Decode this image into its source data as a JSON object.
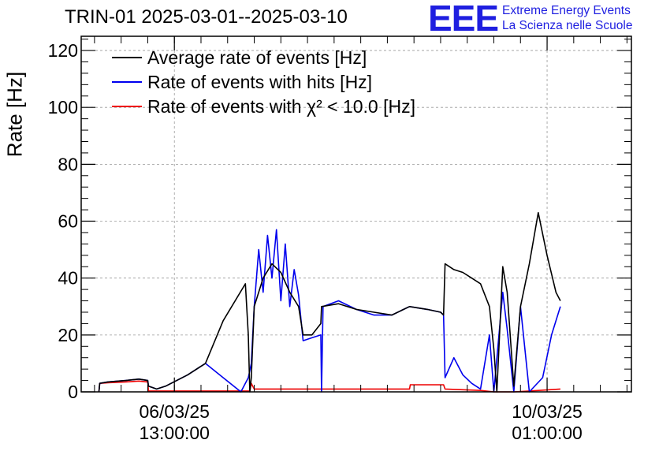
{
  "header": {
    "title": "TRIN-01 2025-03-01--2025-03-10",
    "logo_mark": "EEE",
    "logo_line1": "Extreme Energy Events",
    "logo_line2": "La Scienza nelle Scuole"
  },
  "colors": {
    "average": "#000000",
    "hits": "#0000ee",
    "chi2": "#ee0000",
    "grid": "#999999",
    "logo": "#1f1fe0"
  },
  "chart_data": {
    "type": "line",
    "title": "TRIN-01 2025-03-01--2025-03-10",
    "xlabel": "",
    "ylabel": "Rate [Hz]",
    "x_unit": "time",
    "xlim": [
      "2025-03-05 16:00",
      "2025-03-10 20:00"
    ],
    "ylim": [
      0,
      125
    ],
    "y_ticks": [
      0,
      20,
      40,
      60,
      80,
      100,
      120
    ],
    "x_ticks": [
      {
        "x": "2025-03-06 13:00",
        "label_date": "06/03/25",
        "label_time": "13:00:00"
      },
      {
        "x": "2025-03-10 01:00",
        "label_date": "10/03/25",
        "label_time": "01:00:00"
      }
    ],
    "grid": true,
    "legend": "top-left",
    "series": [
      {
        "name": "Average rate of events [Hz]",
        "color": "#000000",
        "points": [
          [
            "2025-03-05 20:00",
            0
          ],
          [
            "2025-03-05 20:10",
            3
          ],
          [
            "2025-03-05 22:00",
            3.5
          ],
          [
            "2025-03-06 02:00",
            4
          ],
          [
            "2025-03-06 05:00",
            4.5
          ],
          [
            "2025-03-06 07:00",
            4
          ],
          [
            "2025-03-06 07:10",
            2
          ],
          [
            "2025-03-06 09:00",
            1
          ],
          [
            "2025-03-06 11:00",
            2
          ],
          [
            "2025-03-06 16:00",
            6
          ],
          [
            "2025-03-06 20:00",
            10
          ],
          [
            "2025-03-07 00:00",
            25
          ],
          [
            "2025-03-07 05:00",
            38
          ],
          [
            "2025-03-07 05:40",
            20
          ],
          [
            "2025-03-07 06:00",
            0
          ],
          [
            "2025-03-07 06:20",
            5
          ],
          [
            "2025-03-07 07:00",
            30
          ],
          [
            "2025-03-07 09:00",
            40
          ],
          [
            "2025-03-07 11:00",
            45
          ],
          [
            "2025-03-07 13:00",
            42
          ],
          [
            "2025-03-07 15:00",
            35
          ],
          [
            "2025-03-07 17:00",
            30
          ],
          [
            "2025-03-07 18:00",
            20
          ],
          [
            "2025-03-07 20:00",
            20
          ],
          [
            "2025-03-07 22:00",
            24
          ],
          [
            "2025-03-07 22:10",
            30
          ],
          [
            "2025-03-08 02:00",
            31
          ],
          [
            "2025-03-08 06:00",
            29
          ],
          [
            "2025-03-08 10:00",
            28
          ],
          [
            "2025-03-08 14:00",
            27
          ],
          [
            "2025-03-08 18:00",
            30
          ],
          [
            "2025-03-08 22:00",
            29
          ],
          [
            "2025-03-09 01:00",
            28
          ],
          [
            "2025-03-09 01:40",
            27
          ],
          [
            "2025-03-09 02:00",
            45
          ],
          [
            "2025-03-09 04:00",
            43
          ],
          [
            "2025-03-09 06:00",
            42
          ],
          [
            "2025-03-09 08:00",
            40
          ],
          [
            "2025-03-09 10:00",
            38
          ],
          [
            "2025-03-09 12:00",
            30
          ],
          [
            "2025-03-09 13:00",
            15
          ],
          [
            "2025-03-09 13:40",
            0
          ],
          [
            "2025-03-09 15:00",
            44
          ],
          [
            "2025-03-09 16:00",
            35
          ],
          [
            "2025-03-09 17:30",
            2
          ],
          [
            "2025-03-09 19:00",
            30
          ],
          [
            "2025-03-09 21:00",
            45
          ],
          [
            "2025-03-09 23:00",
            63
          ],
          [
            "2025-03-10 01:00",
            48
          ],
          [
            "2025-03-10 03:00",
            35
          ],
          [
            "2025-03-10 04:00",
            32
          ]
        ]
      },
      {
        "name": "Rate of events with hits [Hz]",
        "color": "#0000ee",
        "points": [
          [
            "2025-03-05 20:00",
            0
          ],
          [
            "2025-03-05 20:10",
            3
          ],
          [
            "2025-03-05 22:00",
            3.5
          ],
          [
            "2025-03-06 02:00",
            4
          ],
          [
            "2025-03-06 05:00",
            4.5
          ],
          [
            "2025-03-06 07:00",
            4
          ],
          [
            "2025-03-06 07:10",
            2
          ],
          [
            "2025-03-06 09:00",
            1
          ],
          [
            "2025-03-06 11:00",
            2
          ],
          [
            "2025-03-06 16:00",
            6
          ],
          [
            "2025-03-06 20:00",
            10
          ],
          [
            "2025-03-07 00:00",
            5
          ],
          [
            "2025-03-07 04:00",
            0
          ],
          [
            "2025-03-07 05:40",
            5
          ],
          [
            "2025-03-07 06:20",
            10
          ],
          [
            "2025-03-07 07:00",
            30
          ],
          [
            "2025-03-07 08:00",
            50
          ],
          [
            "2025-03-07 09:00",
            35
          ],
          [
            "2025-03-07 10:00",
            55
          ],
          [
            "2025-03-07 11:00",
            40
          ],
          [
            "2025-03-07 12:00",
            57
          ],
          [
            "2025-03-07 13:00",
            32
          ],
          [
            "2025-03-07 14:00",
            52
          ],
          [
            "2025-03-07 15:00",
            30
          ],
          [
            "2025-03-07 16:00",
            43
          ],
          [
            "2025-03-07 17:00",
            34
          ],
          [
            "2025-03-07 18:00",
            18
          ],
          [
            "2025-03-07 20:00",
            19
          ],
          [
            "2025-03-07 22:00",
            20
          ],
          [
            "2025-03-07 22:10",
            0
          ],
          [
            "2025-03-07 22:30",
            30
          ],
          [
            "2025-03-08 02:00",
            32
          ],
          [
            "2025-03-08 06:00",
            29
          ],
          [
            "2025-03-08 10:00",
            27
          ],
          [
            "2025-03-08 14:00",
            27
          ],
          [
            "2025-03-08 18:00",
            30
          ],
          [
            "2025-03-08 22:00",
            29
          ],
          [
            "2025-03-09 01:00",
            28
          ],
          [
            "2025-03-09 01:40",
            27
          ],
          [
            "2025-03-09 02:00",
            5
          ],
          [
            "2025-03-09 04:00",
            12
          ],
          [
            "2025-03-09 06:00",
            6
          ],
          [
            "2025-03-09 08:00",
            3
          ],
          [
            "2025-03-09 10:00",
            1
          ],
          [
            "2025-03-09 12:00",
            20
          ],
          [
            "2025-03-09 13:00",
            0
          ],
          [
            "2025-03-09 15:00",
            35
          ],
          [
            "2025-03-09 16:00",
            22
          ],
          [
            "2025-03-09 17:30",
            0
          ],
          [
            "2025-03-09 19:00",
            30
          ],
          [
            "2025-03-09 21:00",
            0
          ],
          [
            "2025-03-10 00:00",
            5
          ],
          [
            "2025-03-10 02:00",
            20
          ],
          [
            "2025-03-10 04:00",
            30
          ]
        ]
      },
      {
        "name": "Rate of events with χ² < 10.0 [Hz]",
        "color": "#ee0000",
        "points": [
          [
            "2025-03-05 20:00",
            0
          ],
          [
            "2025-03-05 20:10",
            3
          ],
          [
            "2025-03-05 22:00",
            3.2
          ],
          [
            "2025-03-06 02:00",
            3.5
          ],
          [
            "2025-03-06 05:00",
            3.8
          ],
          [
            "2025-03-06 07:00",
            3.5
          ],
          [
            "2025-03-06 07:10",
            0.3
          ],
          [
            "2025-03-07 06:00",
            0.3
          ],
          [
            "2025-03-07 06:20",
            3
          ],
          [
            "2025-03-07 07:00",
            1
          ],
          [
            "2025-03-07 12:00",
            1
          ],
          [
            "2025-03-07 22:00",
            1
          ],
          [
            "2025-03-08 10:00",
            1
          ],
          [
            "2025-03-08 18:00",
            1
          ],
          [
            "2025-03-08 18:10",
            2.5
          ],
          [
            "2025-03-09 01:40",
            2.5
          ],
          [
            "2025-03-09 02:00",
            1
          ],
          [
            "2025-03-09 10:00",
            0.5
          ],
          [
            "2025-03-09 13:00",
            0
          ],
          [
            "2025-03-09 17:30",
            0
          ],
          [
            "2025-03-09 21:00",
            0.3
          ],
          [
            "2025-03-10 04:00",
            1
          ]
        ]
      }
    ]
  }
}
